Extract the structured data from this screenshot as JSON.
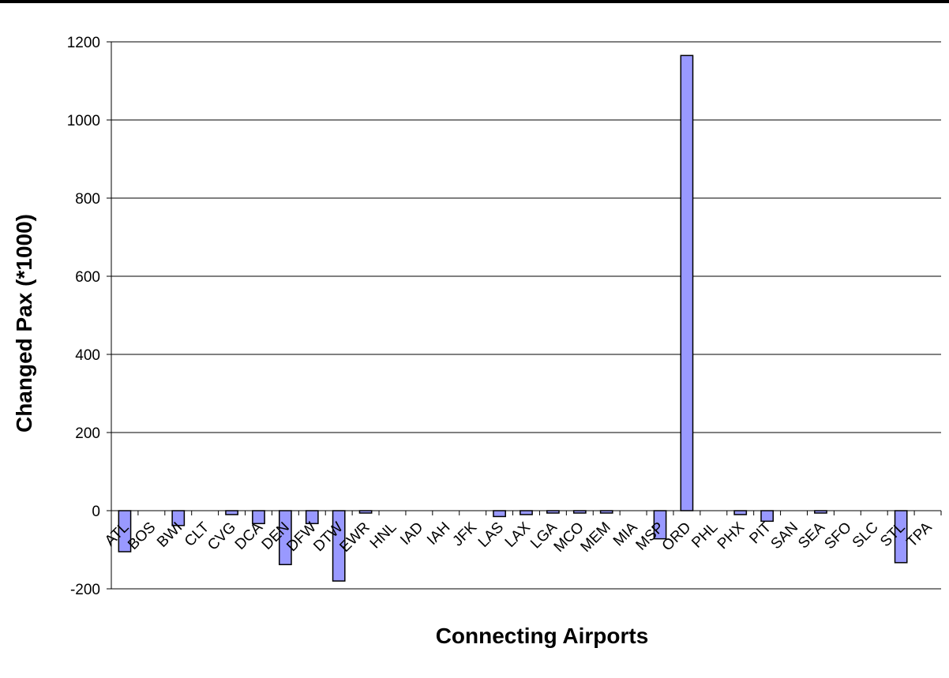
{
  "chart_data": {
    "type": "bar",
    "title": "",
    "xlabel": "Connecting Airports",
    "ylabel": "Changed Pax (*1000)",
    "ylim": [
      -200,
      1200
    ],
    "yticks": [
      -200,
      0,
      200,
      400,
      600,
      800,
      1000,
      1200
    ],
    "grid": true,
    "legend": "none",
    "bar_color": "#9999ff",
    "categories": [
      "ATL",
      "BOS",
      "BWI",
      "CLT",
      "CVG",
      "DCA",
      "DEN",
      "DFW",
      "DTW",
      "EWR",
      "HNL",
      "IAD",
      "IAH",
      "JFK",
      "LAS",
      "LAX",
      "LGA",
      "MCO",
      "MEM",
      "MIA",
      "MSP",
      "ORD",
      "PHL",
      "PHX",
      "PIT",
      "SAN",
      "SEA",
      "SFO",
      "SLC",
      "STL",
      "TPA"
    ],
    "values": [
      -105,
      0,
      -38,
      0,
      -10,
      -33,
      -138,
      -33,
      -180,
      -4,
      0,
      0,
      0,
      0,
      -15,
      -10,
      -3,
      -3,
      -3,
      0,
      -72,
      1165,
      0,
      -10,
      -27,
      0,
      -3,
      0,
      0,
      -133,
      0
    ]
  }
}
